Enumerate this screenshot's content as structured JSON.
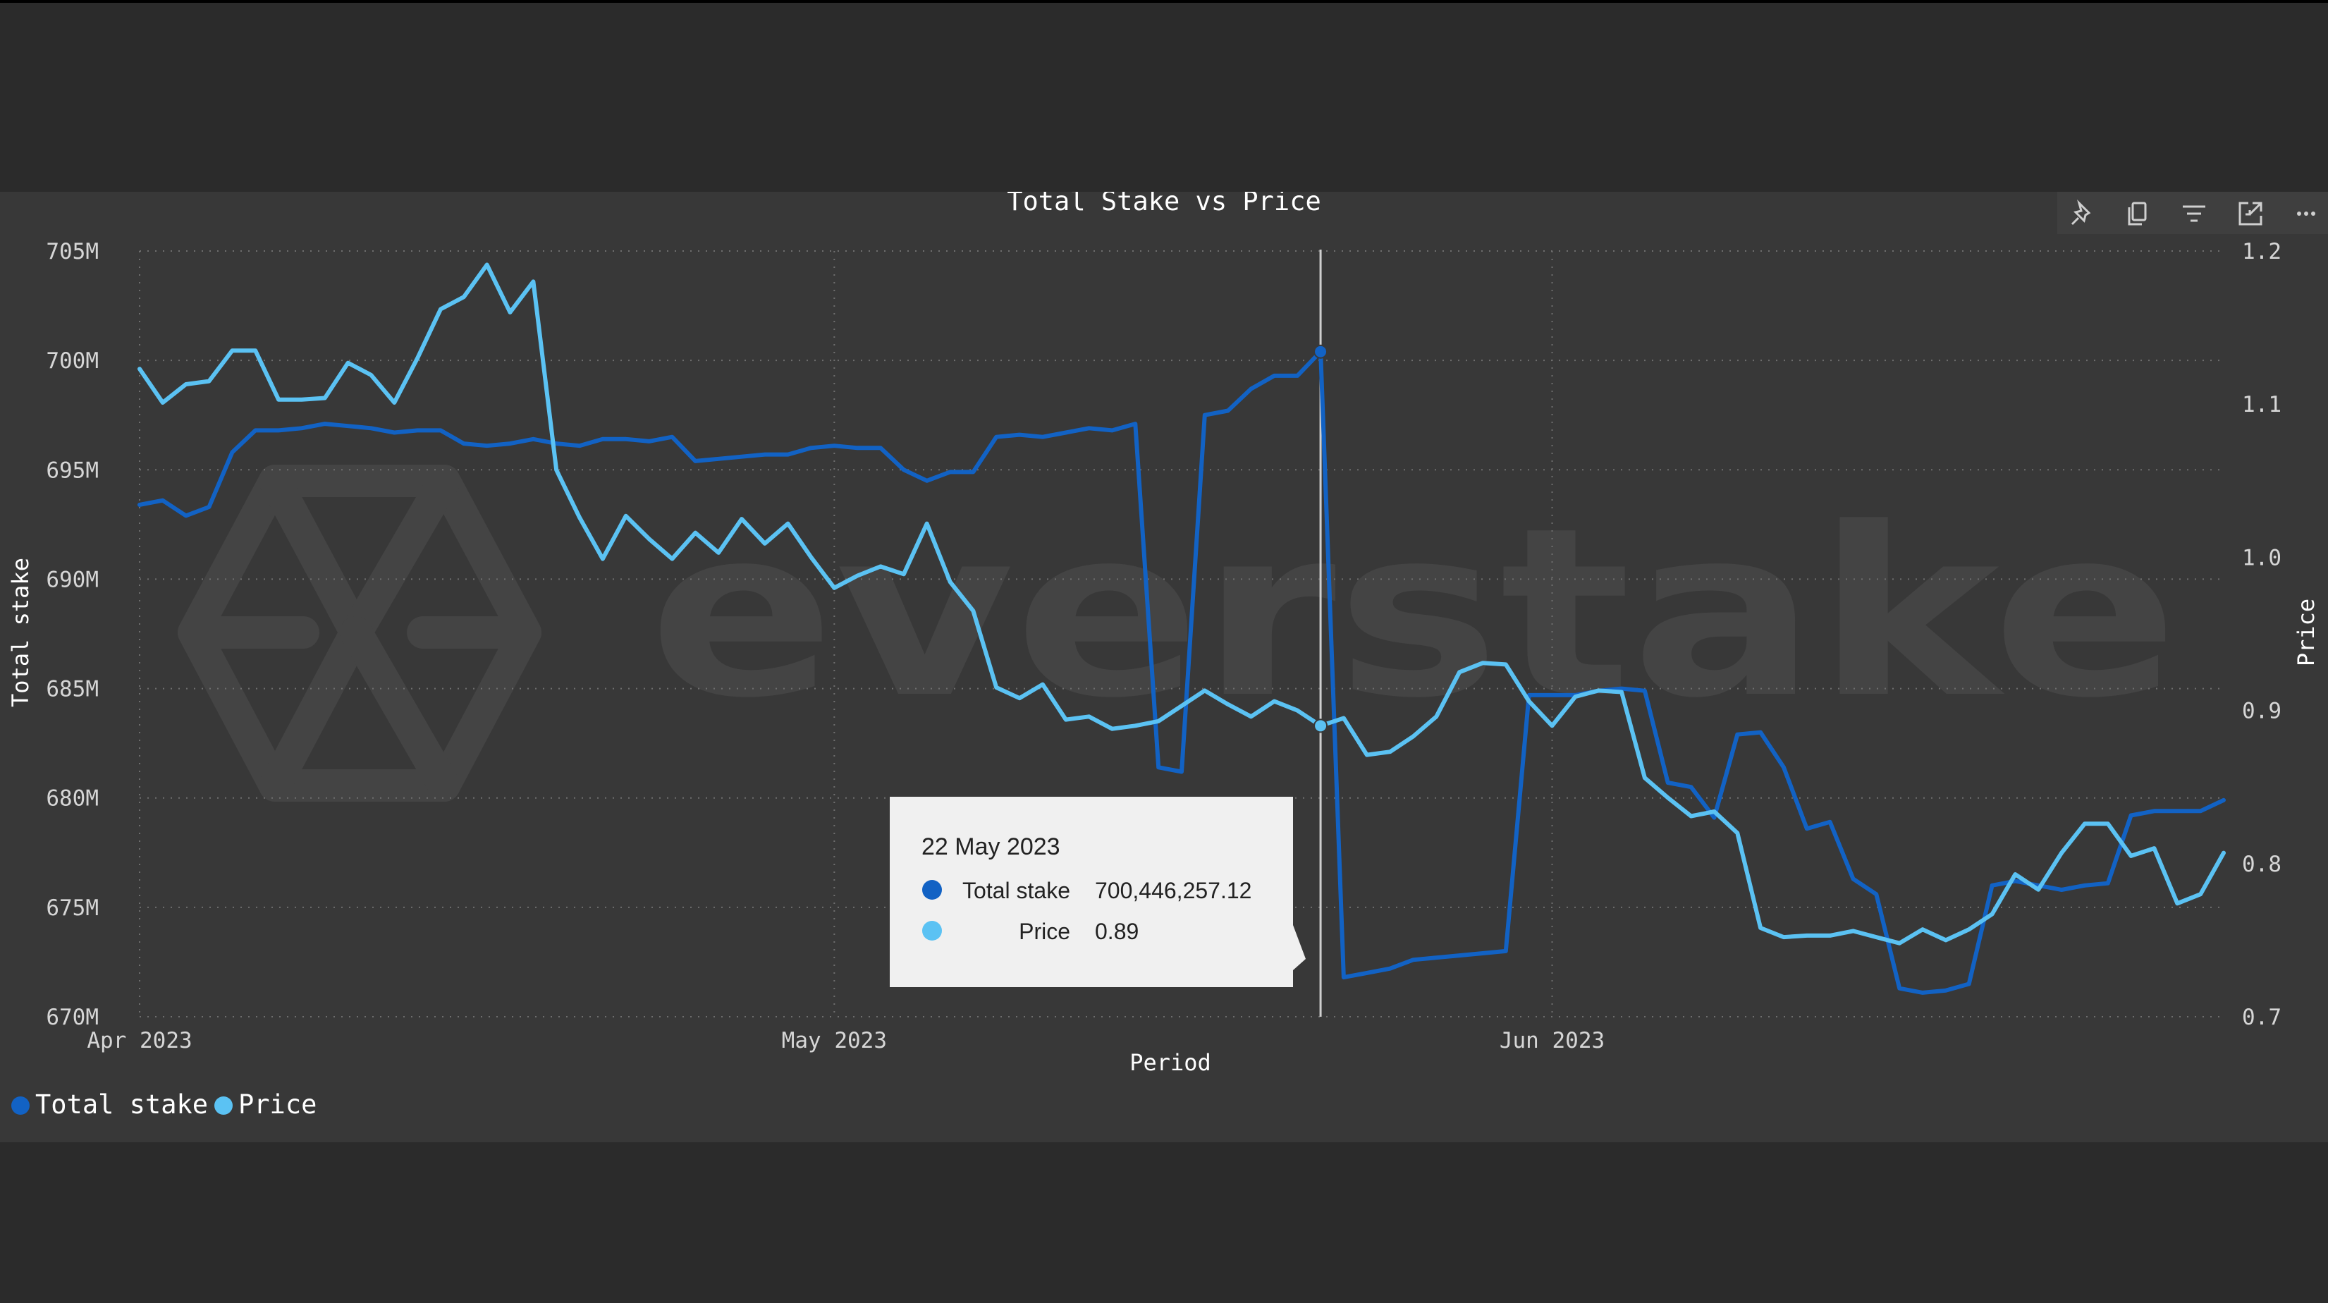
{
  "watermark": {
    "text": "everstake"
  },
  "toolbar": {
    "icons": [
      "pin-icon",
      "copy-icon",
      "filter-icon",
      "focus-mode-icon",
      "more-options-icon"
    ]
  },
  "chart_data": {
    "type": "line",
    "title": "Total Stake vs Price",
    "xlabel": "Period",
    "ylabel": "Total stake",
    "y2label": "Price",
    "grid": true,
    "legend_position": "bottom-left",
    "x_ticks": [
      "Apr 2023",
      "May 2023",
      "Jun 2023"
    ],
    "y_ticks": [
      "705M",
      "700M",
      "695M",
      "690M",
      "685M",
      "680M",
      "675M",
      "670M"
    ],
    "y2_ticks": [
      "1.2",
      "1.1",
      "1.0",
      "0.9",
      "0.8",
      "0.7"
    ],
    "ylim": [
      670000000,
      705000000
    ],
    "y2lim": [
      0.7,
      1.2
    ],
    "x": [
      "2023-04-01",
      "2023-04-02",
      "2023-04-03",
      "2023-04-04",
      "2023-04-05",
      "2023-04-06",
      "2023-04-07",
      "2023-04-08",
      "2023-04-09",
      "2023-04-10",
      "2023-04-11",
      "2023-04-12",
      "2023-04-13",
      "2023-04-14",
      "2023-04-15",
      "2023-04-16",
      "2023-04-17",
      "2023-04-18",
      "2023-04-19",
      "2023-04-20",
      "2023-04-21",
      "2023-04-22",
      "2023-04-23",
      "2023-04-24",
      "2023-04-25",
      "2023-04-26",
      "2023-04-27",
      "2023-04-28",
      "2023-04-29",
      "2023-04-30",
      "2023-05-01",
      "2023-05-02",
      "2023-05-03",
      "2023-05-04",
      "2023-05-05",
      "2023-05-06",
      "2023-05-07",
      "2023-05-08",
      "2023-05-09",
      "2023-05-10",
      "2023-05-11",
      "2023-05-12",
      "2023-05-13",
      "2023-05-14",
      "2023-05-15",
      "2023-05-16",
      "2023-05-17",
      "2023-05-18",
      "2023-05-19",
      "2023-05-20",
      "2023-05-21",
      "2023-05-22",
      "2023-05-23",
      "2023-05-24",
      "2023-05-25",
      "2023-05-26",
      "2023-05-27",
      "2023-05-28",
      "2023-05-29",
      "2023-05-30",
      "2023-05-31",
      "2023-06-01",
      "2023-06-02",
      "2023-06-03",
      "2023-06-04",
      "2023-06-05",
      "2023-06-06",
      "2023-06-07",
      "2023-06-08",
      "2023-06-09",
      "2023-06-10",
      "2023-06-11",
      "2023-06-12",
      "2023-06-13",
      "2023-06-14",
      "2023-06-15",
      "2023-06-16",
      "2023-06-17",
      "2023-06-18",
      "2023-06-19",
      "2023-06-20",
      "2023-06-21",
      "2023-06-22",
      "2023-06-23",
      "2023-06-24",
      "2023-06-25",
      "2023-06-26",
      "2023-06-27",
      "2023-06-28",
      "2023-06-29",
      "2023-06-30"
    ],
    "series": [
      {
        "name": "Total stake",
        "color": "#1262c4",
        "axis": "left",
        "values": [
          693400000,
          693600000,
          692900000,
          693300000,
          695800000,
          696800000,
          696800000,
          696900000,
          697100000,
          697000000,
          696900000,
          696700000,
          696800000,
          696800000,
          696200000,
          696100000,
          696200000,
          696400000,
          696200000,
          696100000,
          696400000,
          696400000,
          696300000,
          696500000,
          695400000,
          695500000,
          695600000,
          695700000,
          695700000,
          696000000,
          696100000,
          696000000,
          696000000,
          695000000,
          694500000,
          694900000,
          694900000,
          696500000,
          696600000,
          696500000,
          696700000,
          696900000,
          696800000,
          697100000,
          681400000,
          681200000,
          697500000,
          697700000,
          698700000,
          699300000,
          699300000,
          700400000,
          671800000,
          672000000,
          672200000,
          672600000,
          672700000,
          672800000,
          672900000,
          673000000,
          684700000,
          684700000,
          684700000,
          684900000,
          685000000,
          684900000,
          680700000,
          680500000,
          679100000,
          682900000,
          683000000,
          681400000,
          678600000,
          678900000,
          676300000,
          675600000,
          671300000,
          671100000,
          671200000,
          671500000,
          676000000,
          676200000,
          676000000,
          675800000,
          676000000,
          676100000,
          679200000,
          679400000,
          679400000,
          679400000,
          679900000
        ]
      },
      {
        "name": "Price",
        "color": "#5bc2f3",
        "axis": "right",
        "values": [
          1.123,
          1.101,
          1.113,
          1.115,
          1.135,
          1.135,
          1.103,
          1.103,
          1.104,
          1.127,
          1.119,
          1.101,
          1.13,
          1.162,
          1.17,
          1.191,
          1.16,
          1.18,
          1.057,
          1.026,
          0.999,
          1.027,
          1.012,
          0.999,
          1.016,
          1.003,
          1.025,
          1.009,
          1.022,
          1.0,
          0.98,
          0.988,
          0.994,
          0.989,
          1.022,
          0.984,
          0.965,
          0.915,
          0.908,
          0.917,
          0.894,
          0.896,
          0.888,
          0.89,
          0.893,
          0.903,
          0.913,
          0.904,
          0.896,
          0.906,
          0.9,
          0.89,
          0.895,
          0.871,
          0.873,
          0.883,
          0.896,
          0.925,
          0.931,
          0.93,
          0.906,
          0.89,
          0.909,
          0.913,
          0.912,
          0.856,
          0.843,
          0.831,
          0.834,
          0.82,
          0.758,
          0.752,
          0.753,
          0.753,
          0.756,
          0.752,
          0.748,
          0.757,
          0.75,
          0.757,
          0.767,
          0.793,
          0.783,
          0.807,
          0.826,
          0.826,
          0.805,
          0.81,
          0.774,
          0.78,
          0.807
        ]
      }
    ],
    "hover": {
      "index": 51,
      "date_label": "22 May 2023",
      "rows": [
        {
          "name": "Total stake",
          "value": "700,446,257.12",
          "color": "#1262c4"
        },
        {
          "name": "Price",
          "value": "0.89",
          "color": "#5bc2f3"
        }
      ]
    }
  }
}
